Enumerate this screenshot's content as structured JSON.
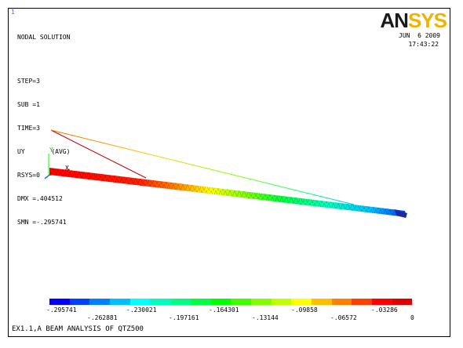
{
  "window_number": "1",
  "title": "NODAL SOLUTION",
  "info": [
    "STEP=3",
    "SUB =1",
    "TIME=3",
    "UY       (AVG)",
    "RSYS=0",
    "DMX =.404512",
    "SMN =-.295741"
  ],
  "date": "JUN  6 2009",
  "time": "17:43:22",
  "logo": {
    "an": "AN",
    "sys": "SYS"
  },
  "axis_labels": {
    "y": "Y",
    "x": "X"
  },
  "legend": {
    "colors": [
      "#0000ff",
      "#0040ff",
      "#0080ff",
      "#00bfff",
      "#00ffff",
      "#00ffbf",
      "#00ff80",
      "#00ff40",
      "#00ff00",
      "#40ff00",
      "#80ff00",
      "#bfff00",
      "#ffff00",
      "#ffbf00",
      "#ff8000",
      "#ff4000",
      "#ff0000",
      "#e00000"
    ],
    "upper_labels": [
      "-.295741",
      "-.230021",
      "-.164301",
      "-.09858",
      "-.03286"
    ],
    "lower_labels": [
      "-.262881",
      "-.197161",
      "-.13144",
      "-.06572",
      "0"
    ]
  },
  "footer": "EX1.1,A BEAM ANALYSIS OF QTZ500"
}
